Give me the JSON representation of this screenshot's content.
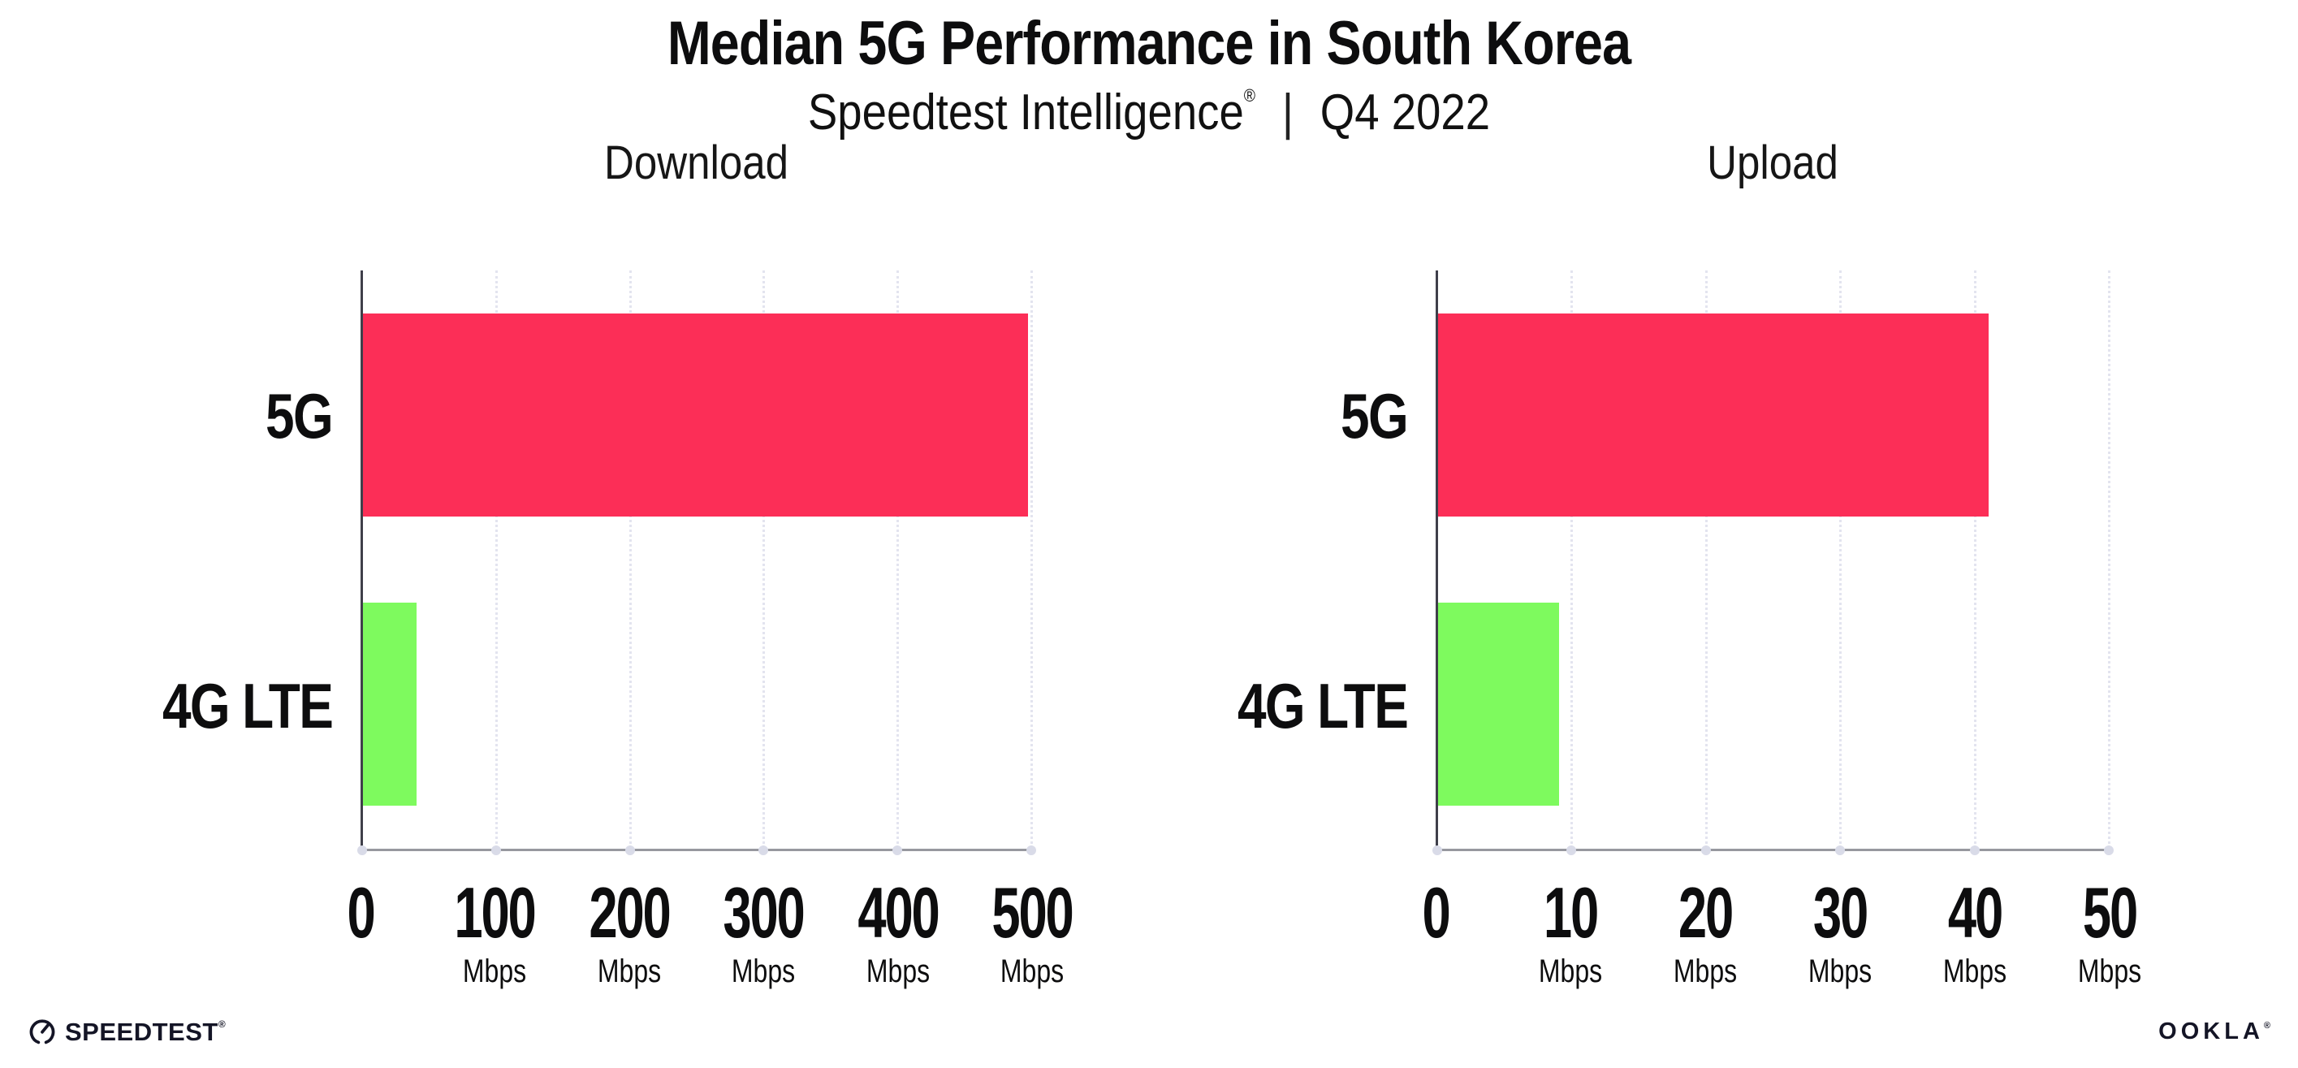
{
  "header": {
    "title": "Median 5G Performance in South Korea",
    "subtitle_brand": "Speedtest Intelligence",
    "subtitle_reg": "®",
    "subtitle_sep": "|",
    "subtitle_period": "Q4 2022"
  },
  "chart_data": [
    {
      "type": "bar",
      "orientation": "horizontal",
      "title": "Download",
      "categories": [
        "5G",
        "4G LTE"
      ],
      "values": [
        497,
        40
      ],
      "unit": "Mbps",
      "xlim": [
        0,
        500
      ],
      "xticks": [
        0,
        100,
        200,
        300,
        400,
        500
      ],
      "bar_colors": [
        "#fc2e57",
        "#7efa5e"
      ],
      "grid": "dotted-vertical",
      "legend": "none"
    },
    {
      "type": "bar",
      "orientation": "horizontal",
      "title": "Upload",
      "categories": [
        "5G",
        "4G LTE"
      ],
      "values": [
        41,
        9
      ],
      "unit": "Mbps",
      "xlim": [
        0,
        50
      ],
      "xticks": [
        0,
        10,
        20,
        30,
        40,
        50
      ],
      "bar_colors": [
        "#fc2e57",
        "#7efa5e"
      ],
      "grid": "dotted-vertical",
      "legend": "none"
    }
  ],
  "footer": {
    "speedtest_label": "SPEEDTEST",
    "speedtest_reg": "®",
    "ookla_label": "OOKLA",
    "ookla_reg": "®"
  },
  "colors": {
    "bar_5g": "#fc2e57",
    "bar_4g_lte": "#7efa5e",
    "grid": "#e3e4ef",
    "axis_left": "#3f3f4a",
    "axis_bottom": "#97989f",
    "text": "#0d0d0e",
    "logo": "#141526"
  }
}
